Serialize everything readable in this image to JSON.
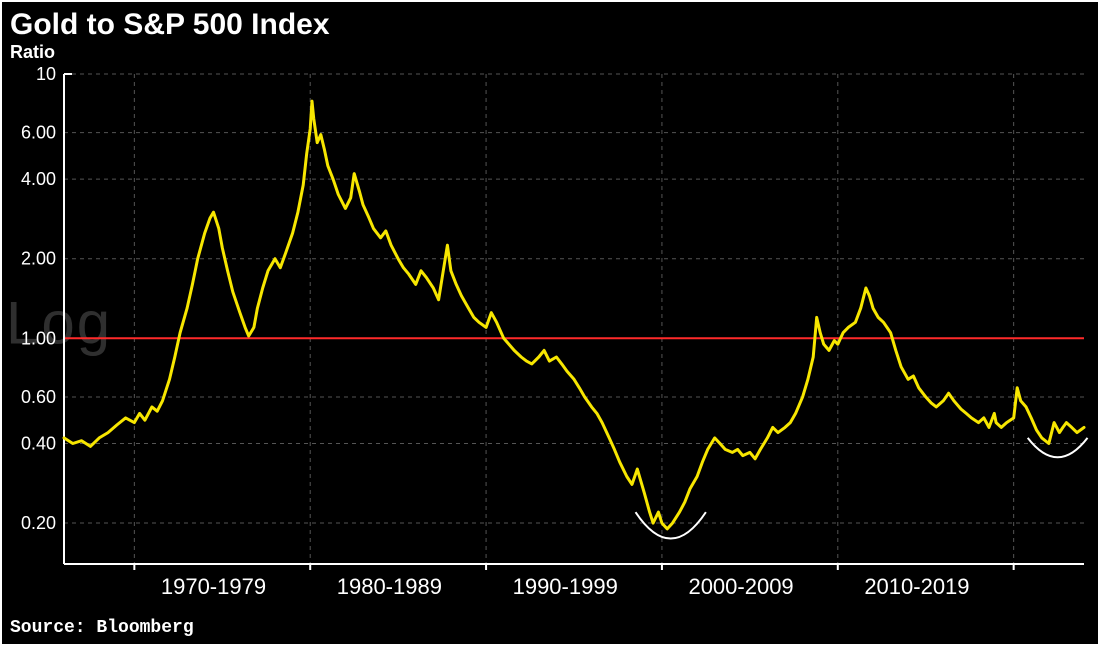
{
  "title": "Gold to S&P 500 Index",
  "subtitle": "Ratio",
  "source": "Source: Bloomberg",
  "watermark": "Log",
  "chart": {
    "type": "line",
    "background_color": "#000000",
    "axis_color": "#ffffff",
    "grid_color": "#555555",
    "grid_dash": "4 4",
    "reference_line": {
      "y": 1.0,
      "color": "#ff2a2a",
      "width": 2
    },
    "series_color": "#f7e600",
    "series_width": 3,
    "annotation_color": "#ffffff",
    "annotation_width": 2,
    "yscale": "log",
    "ylim": [
      0.14,
      10
    ],
    "yticks": [
      0.2,
      0.4,
      0.6,
      1.0,
      2.0,
      4.0,
      6.0,
      10
    ],
    "ytick_labels": [
      "0.20",
      "0.40",
      "0.60",
      "1.00",
      "2.00",
      "4.00",
      "6.00",
      "10"
    ],
    "xlim": [
      1966,
      2024
    ],
    "x_gridlines": [
      1970,
      1980,
      1990,
      2000,
      2010,
      2020
    ],
    "x_tick_positions": [
      1974.5,
      1984.5,
      1994.5,
      2004.5,
      2014.5
    ],
    "x_tick_labels": [
      "1970-1979",
      "1980-1989",
      "1990-1999",
      "2000-2009",
      "2010-2019"
    ],
    "arc_annotations": [
      {
        "x_center": 2000.5,
        "x_radius": 2.0,
        "y_bottom": 0.165,
        "y_side": 0.22
      },
      {
        "x_center": 2022.5,
        "x_radius": 1.7,
        "y_bottom": 0.34,
        "y_side": 0.42
      }
    ],
    "data": [
      {
        "x": 1966.0,
        "y": 0.42
      },
      {
        "x": 1966.5,
        "y": 0.4
      },
      {
        "x": 1967.0,
        "y": 0.41
      },
      {
        "x": 1967.5,
        "y": 0.39
      },
      {
        "x": 1968.0,
        "y": 0.42
      },
      {
        "x": 1968.5,
        "y": 0.44
      },
      {
        "x": 1969.0,
        "y": 0.47
      },
      {
        "x": 1969.5,
        "y": 0.5
      },
      {
        "x": 1970.0,
        "y": 0.48
      },
      {
        "x": 1970.3,
        "y": 0.52
      },
      {
        "x": 1970.6,
        "y": 0.49
      },
      {
        "x": 1971.0,
        "y": 0.55
      },
      {
        "x": 1971.3,
        "y": 0.53
      },
      {
        "x": 1971.6,
        "y": 0.58
      },
      {
        "x": 1972.0,
        "y": 0.7
      },
      {
        "x": 1972.3,
        "y": 0.85
      },
      {
        "x": 1972.6,
        "y": 1.05
      },
      {
        "x": 1973.0,
        "y": 1.3
      },
      {
        "x": 1973.3,
        "y": 1.6
      },
      {
        "x": 1973.6,
        "y": 2.0
      },
      {
        "x": 1974.0,
        "y": 2.5
      },
      {
        "x": 1974.3,
        "y": 2.85
      },
      {
        "x": 1974.5,
        "y": 3.0
      },
      {
        "x": 1974.8,
        "y": 2.6
      },
      {
        "x": 1975.0,
        "y": 2.2
      },
      {
        "x": 1975.3,
        "y": 1.8
      },
      {
        "x": 1975.6,
        "y": 1.5
      },
      {
        "x": 1976.0,
        "y": 1.25
      },
      {
        "x": 1976.3,
        "y": 1.1
      },
      {
        "x": 1976.5,
        "y": 1.02
      },
      {
        "x": 1976.8,
        "y": 1.1
      },
      {
        "x": 1977.0,
        "y": 1.3
      },
      {
        "x": 1977.3,
        "y": 1.55
      },
      {
        "x": 1977.6,
        "y": 1.8
      },
      {
        "x": 1978.0,
        "y": 2.0
      },
      {
        "x": 1978.3,
        "y": 1.85
      },
      {
        "x": 1978.6,
        "y": 2.1
      },
      {
        "x": 1979.0,
        "y": 2.5
      },
      {
        "x": 1979.3,
        "y": 3.0
      },
      {
        "x": 1979.6,
        "y": 3.8
      },
      {
        "x": 1979.8,
        "y": 5.0
      },
      {
        "x": 1980.0,
        "y": 6.2
      },
      {
        "x": 1980.1,
        "y": 7.9
      },
      {
        "x": 1980.2,
        "y": 6.8
      },
      {
        "x": 1980.4,
        "y": 5.5
      },
      {
        "x": 1980.6,
        "y": 5.9
      },
      {
        "x": 1980.8,
        "y": 5.2
      },
      {
        "x": 1981.0,
        "y": 4.5
      },
      {
        "x": 1981.3,
        "y": 4.0
      },
      {
        "x": 1981.6,
        "y": 3.5
      },
      {
        "x": 1982.0,
        "y": 3.1
      },
      {
        "x": 1982.3,
        "y": 3.4
      },
      {
        "x": 1982.5,
        "y": 4.2
      },
      {
        "x": 1982.8,
        "y": 3.6
      },
      {
        "x": 1983.0,
        "y": 3.2
      },
      {
        "x": 1983.3,
        "y": 2.9
      },
      {
        "x": 1983.6,
        "y": 2.6
      },
      {
        "x": 1984.0,
        "y": 2.4
      },
      {
        "x": 1984.3,
        "y": 2.55
      },
      {
        "x": 1984.6,
        "y": 2.25
      },
      {
        "x": 1985.0,
        "y": 2.0
      },
      {
        "x": 1985.3,
        "y": 1.85
      },
      {
        "x": 1985.6,
        "y": 1.75
      },
      {
        "x": 1986.0,
        "y": 1.6
      },
      {
        "x": 1986.3,
        "y": 1.8
      },
      {
        "x": 1986.6,
        "y": 1.7
      },
      {
        "x": 1987.0,
        "y": 1.55
      },
      {
        "x": 1987.3,
        "y": 1.4
      },
      {
        "x": 1987.8,
        "y": 2.25
      },
      {
        "x": 1988.0,
        "y": 1.8
      },
      {
        "x": 1988.3,
        "y": 1.6
      },
      {
        "x": 1988.6,
        "y": 1.45
      },
      {
        "x": 1989.0,
        "y": 1.3
      },
      {
        "x": 1989.3,
        "y": 1.2
      },
      {
        "x": 1989.6,
        "y": 1.15
      },
      {
        "x": 1990.0,
        "y": 1.1
      },
      {
        "x": 1990.3,
        "y": 1.25
      },
      {
        "x": 1990.6,
        "y": 1.15
      },
      {
        "x": 1991.0,
        "y": 1.0
      },
      {
        "x": 1991.3,
        "y": 0.95
      },
      {
        "x": 1991.6,
        "y": 0.9
      },
      {
        "x": 1992.0,
        "y": 0.85
      },
      {
        "x": 1992.3,
        "y": 0.82
      },
      {
        "x": 1992.6,
        "y": 0.8
      },
      {
        "x": 1993.0,
        "y": 0.85
      },
      {
        "x": 1993.3,
        "y": 0.9
      },
      {
        "x": 1993.6,
        "y": 0.82
      },
      {
        "x": 1994.0,
        "y": 0.85
      },
      {
        "x": 1994.3,
        "y": 0.8
      },
      {
        "x": 1994.6,
        "y": 0.75
      },
      {
        "x": 1995.0,
        "y": 0.7
      },
      {
        "x": 1995.3,
        "y": 0.65
      },
      {
        "x": 1995.6,
        "y": 0.6
      },
      {
        "x": 1996.0,
        "y": 0.55
      },
      {
        "x": 1996.3,
        "y": 0.52
      },
      {
        "x": 1996.6,
        "y": 0.48
      },
      {
        "x": 1997.0,
        "y": 0.42
      },
      {
        "x": 1997.3,
        "y": 0.38
      },
      {
        "x": 1997.6,
        "y": 0.34
      },
      {
        "x": 1998.0,
        "y": 0.3
      },
      {
        "x": 1998.3,
        "y": 0.28
      },
      {
        "x": 1998.6,
        "y": 0.32
      },
      {
        "x": 1999.0,
        "y": 0.26
      },
      {
        "x": 1999.3,
        "y": 0.22
      },
      {
        "x": 1999.5,
        "y": 0.2
      },
      {
        "x": 1999.8,
        "y": 0.22
      },
      {
        "x": 2000.0,
        "y": 0.2
      },
      {
        "x": 2000.3,
        "y": 0.19
      },
      {
        "x": 2000.6,
        "y": 0.2
      },
      {
        "x": 2001.0,
        "y": 0.22
      },
      {
        "x": 2001.3,
        "y": 0.24
      },
      {
        "x": 2001.6,
        "y": 0.27
      },
      {
        "x": 2002.0,
        "y": 0.3
      },
      {
        "x": 2002.3,
        "y": 0.34
      },
      {
        "x": 2002.6,
        "y": 0.38
      },
      {
        "x": 2003.0,
        "y": 0.42
      },
      {
        "x": 2003.3,
        "y": 0.4
      },
      {
        "x": 2003.6,
        "y": 0.38
      },
      {
        "x": 2004.0,
        "y": 0.37
      },
      {
        "x": 2004.3,
        "y": 0.38
      },
      {
        "x": 2004.6,
        "y": 0.36
      },
      {
        "x": 2005.0,
        "y": 0.37
      },
      {
        "x": 2005.3,
        "y": 0.35
      },
      {
        "x": 2005.6,
        "y": 0.38
      },
      {
        "x": 2006.0,
        "y": 0.42
      },
      {
        "x": 2006.3,
        "y": 0.46
      },
      {
        "x": 2006.6,
        "y": 0.44
      },
      {
        "x": 2007.0,
        "y": 0.46
      },
      {
        "x": 2007.3,
        "y": 0.48
      },
      {
        "x": 2007.6,
        "y": 0.52
      },
      {
        "x": 2008.0,
        "y": 0.6
      },
      {
        "x": 2008.3,
        "y": 0.7
      },
      {
        "x": 2008.6,
        "y": 0.85
      },
      {
        "x": 2008.8,
        "y": 1.2
      },
      {
        "x": 2009.0,
        "y": 1.05
      },
      {
        "x": 2009.2,
        "y": 0.95
      },
      {
        "x": 2009.5,
        "y": 0.9
      },
      {
        "x": 2009.8,
        "y": 0.98
      },
      {
        "x": 2010.0,
        "y": 0.95
      },
      {
        "x": 2010.3,
        "y": 1.05
      },
      {
        "x": 2010.6,
        "y": 1.1
      },
      {
        "x": 2011.0,
        "y": 1.15
      },
      {
        "x": 2011.3,
        "y": 1.3
      },
      {
        "x": 2011.6,
        "y": 1.55
      },
      {
        "x": 2011.8,
        "y": 1.45
      },
      {
        "x": 2012.0,
        "y": 1.3
      },
      {
        "x": 2012.3,
        "y": 1.2
      },
      {
        "x": 2012.6,
        "y": 1.15
      },
      {
        "x": 2013.0,
        "y": 1.05
      },
      {
        "x": 2013.3,
        "y": 0.9
      },
      {
        "x": 2013.6,
        "y": 0.78
      },
      {
        "x": 2014.0,
        "y": 0.7
      },
      {
        "x": 2014.3,
        "y": 0.72
      },
      {
        "x": 2014.6,
        "y": 0.65
      },
      {
        "x": 2015.0,
        "y": 0.6
      },
      {
        "x": 2015.3,
        "y": 0.57
      },
      {
        "x": 2015.6,
        "y": 0.55
      },
      {
        "x": 2016.0,
        "y": 0.58
      },
      {
        "x": 2016.3,
        "y": 0.62
      },
      {
        "x": 2016.6,
        "y": 0.58
      },
      {
        "x": 2017.0,
        "y": 0.54
      },
      {
        "x": 2017.3,
        "y": 0.52
      },
      {
        "x": 2017.6,
        "y": 0.5
      },
      {
        "x": 2018.0,
        "y": 0.48
      },
      {
        "x": 2018.3,
        "y": 0.5
      },
      {
        "x": 2018.6,
        "y": 0.46
      },
      {
        "x": 2018.9,
        "y": 0.52
      },
      {
        "x": 2019.0,
        "y": 0.48
      },
      {
        "x": 2019.3,
        "y": 0.46
      },
      {
        "x": 2019.6,
        "y": 0.48
      },
      {
        "x": 2020.0,
        "y": 0.5
      },
      {
        "x": 2020.2,
        "y": 0.65
      },
      {
        "x": 2020.4,
        "y": 0.58
      },
      {
        "x": 2020.7,
        "y": 0.55
      },
      {
        "x": 2021.0,
        "y": 0.5
      },
      {
        "x": 2021.3,
        "y": 0.45
      },
      {
        "x": 2021.6,
        "y": 0.42
      },
      {
        "x": 2022.0,
        "y": 0.4
      },
      {
        "x": 2022.3,
        "y": 0.48
      },
      {
        "x": 2022.6,
        "y": 0.44
      },
      {
        "x": 2022.8,
        "y": 0.46
      },
      {
        "x": 2023.0,
        "y": 0.48
      },
      {
        "x": 2023.3,
        "y": 0.46
      },
      {
        "x": 2023.6,
        "y": 0.44
      },
      {
        "x": 2024.0,
        "y": 0.46
      }
    ]
  }
}
